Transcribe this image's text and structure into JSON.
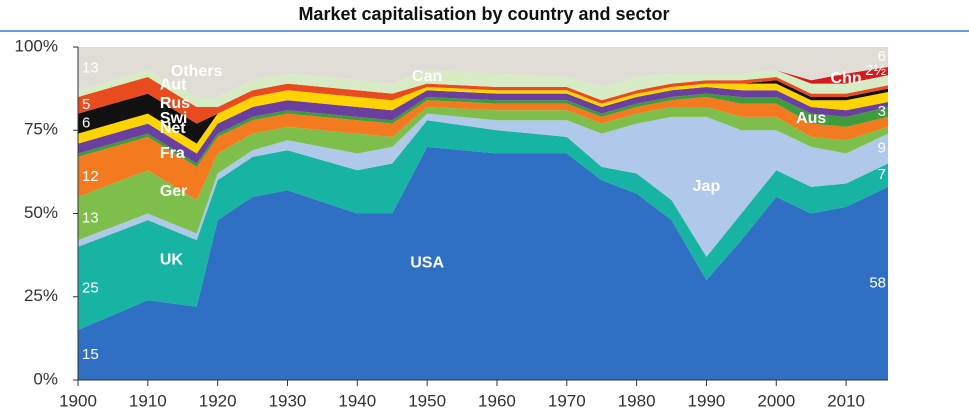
{
  "chart_data": {
    "type": "stacked_area",
    "title": "Market capitalisation by country and sector",
    "x": [
      1900,
      1910,
      1917,
      1920,
      1925,
      1930,
      1940,
      1945,
      1950,
      1960,
      1970,
      1975,
      1980,
      1985,
      1990,
      1995,
      2000,
      2005,
      2010,
      2016
    ],
    "xlim": [
      1900,
      2016
    ],
    "xticks": [
      1900,
      1910,
      1920,
      1930,
      1940,
      1950,
      1960,
      1970,
      1980,
      1990,
      2000,
      2010
    ],
    "ylim": [
      0,
      100
    ],
    "yticks": [
      {
        "value": 0,
        "label": "0%"
      },
      {
        "value": 25,
        "label": "25%"
      },
      {
        "value": 50,
        "label": "50%"
      },
      {
        "value": 75,
        "label": "75%"
      },
      {
        "value": 100,
        "label": "100%"
      }
    ],
    "series": [
      {
        "name": "USA",
        "color": "#2f6fc4",
        "values": [
          15,
          24,
          22,
          48,
          55,
          57,
          50,
          50,
          70,
          68,
          68,
          60,
          56,
          48,
          30,
          42,
          55,
          50,
          52,
          58
        ],
        "value_labels": [
          "15",
          null,
          null,
          null,
          null,
          null,
          null,
          null,
          null,
          null,
          null,
          null,
          null,
          null,
          null,
          null,
          null,
          null,
          null,
          "58"
        ]
      },
      {
        "name": "UK",
        "color": "#17b3a3",
        "values": [
          25,
          24,
          20,
          12,
          12,
          12,
          13,
          15,
          8,
          7,
          5,
          4,
          6,
          6,
          7,
          8,
          8,
          8,
          7,
          7
        ],
        "value_labels": [
          "25",
          null,
          null,
          null,
          null,
          null,
          null,
          null,
          null,
          null,
          null,
          null,
          null,
          null,
          null,
          null,
          null,
          null,
          null,
          "7"
        ]
      },
      {
        "name": "Jap",
        "color": "#b0c8ea",
        "values": [
          2,
          2,
          2,
          2,
          2,
          3,
          5,
          5,
          2,
          3,
          5,
          10,
          15,
          25,
          42,
          25,
          12,
          12,
          9,
          9
        ],
        "value_labels": [
          null,
          null,
          null,
          null,
          null,
          null,
          null,
          null,
          null,
          null,
          null,
          null,
          null,
          null,
          null,
          null,
          null,
          null,
          null,
          "9"
        ]
      },
      {
        "name": "Ger",
        "color": "#7dbf4a",
        "values": [
          13,
          13,
          10,
          6,
          5,
          4,
          6,
          3,
          2,
          3,
          3,
          3,
          3,
          3,
          3,
          4,
          4,
          3,
          4,
          2
        ],
        "value_labels": [
          "13",
          null,
          null,
          null,
          null,
          null,
          null,
          null,
          null,
          null,
          null,
          null,
          null,
          null,
          null,
          null,
          null,
          null,
          null,
          null
        ]
      },
      {
        "name": "Fra",
        "color": "#f47a20",
        "values": [
          12,
          10,
          10,
          5,
          4,
          4,
          4,
          4,
          2,
          2,
          2,
          2,
          2,
          2,
          3,
          4,
          4,
          4,
          4,
          3
        ],
        "value_labels": [
          "12",
          null,
          null,
          null,
          null,
          null,
          null,
          null,
          null,
          null,
          null,
          null,
          null,
          null,
          null,
          null,
          null,
          null,
          null,
          null
        ]
      },
      {
        "name": "Aus",
        "color": "#3f9c3a",
        "values": [
          1,
          1,
          1,
          1,
          1,
          1,
          1,
          1,
          1,
          1,
          1,
          1,
          1,
          1,
          1,
          2,
          2,
          3,
          3,
          3
        ],
        "value_labels": [
          null,
          null,
          null,
          null,
          null,
          null,
          null,
          null,
          null,
          null,
          null,
          null,
          null,
          null,
          null,
          null,
          null,
          null,
          null,
          "3"
        ]
      },
      {
        "name": "Net",
        "color": "#6b3fa0",
        "values": [
          3,
          3,
          3,
          3,
          3,
          3,
          3,
          3,
          2,
          2,
          2,
          2,
          2,
          2,
          2,
          2,
          2,
          2,
          2,
          1.5
        ],
        "value_labels": [
          null,
          null,
          null,
          null,
          null,
          null,
          null,
          null,
          null,
          null,
          null,
          null,
          null,
          null,
          null,
          null,
          null,
          null,
          null,
          null
        ]
      },
      {
        "name": "Swi",
        "color": "#ffd400",
        "values": [
          3,
          3,
          3,
          3,
          3,
          3,
          3,
          3,
          1,
          1,
          1,
          1,
          1,
          1,
          1,
          2,
          2,
          2,
          3,
          3
        ],
        "value_labels": [
          null,
          null,
          null,
          null,
          null,
          null,
          null,
          null,
          null,
          null,
          null,
          null,
          null,
          null,
          null,
          null,
          null,
          null,
          null,
          null
        ]
      },
      {
        "name": "Rus",
        "color": "#111111",
        "values": [
          6,
          6,
          6,
          0,
          0,
          0,
          0,
          0,
          0,
          0,
          0,
          0,
          0,
          0,
          0,
          0,
          1,
          1,
          1,
          1
        ],
        "value_labels": [
          "6",
          null,
          null,
          null,
          null,
          null,
          null,
          null,
          null,
          null,
          null,
          null,
          null,
          null,
          null,
          null,
          null,
          null,
          null,
          null
        ]
      },
      {
        "name": "Aut",
        "color": "#e84c1e",
        "values": [
          5,
          5,
          5,
          2,
          2,
          2,
          2,
          2,
          1,
          1,
          1,
          1,
          1,
          1,
          1,
          1,
          1,
          1,
          1,
          1
        ],
        "value_labels": [
          "5",
          null,
          null,
          null,
          null,
          null,
          null,
          null,
          null,
          null,
          null,
          null,
          null,
          null,
          null,
          null,
          null,
          null,
          null,
          null
        ]
      },
      {
        "name": "Can",
        "color": "#d7ecc4",
        "values": [
          2,
          2,
          3,
          3,
          3,
          3,
          3,
          3,
          4,
          4,
          3,
          4,
          4,
          3,
          2,
          2,
          2,
          3,
          3,
          3
        ],
        "value_labels": [
          null,
          null,
          null,
          null,
          null,
          null,
          null,
          null,
          null,
          null,
          null,
          null,
          null,
          null,
          null,
          null,
          null,
          null,
          null,
          null
        ]
      },
      {
        "name": "Chn",
        "color": "#d7191c",
        "values": [
          0,
          0,
          0,
          0,
          0,
          0,
          0,
          0,
          0,
          0,
          0,
          0,
          0,
          0,
          0,
          0,
          0,
          1,
          3,
          2.5
        ],
        "value_labels": [
          null,
          null,
          null,
          null,
          null,
          null,
          null,
          null,
          null,
          null,
          null,
          null,
          null,
          null,
          null,
          null,
          null,
          null,
          null,
          "2½"
        ]
      },
      {
        "name": "Others",
        "color": "#e0dcd6",
        "values": [
          13,
          7,
          15,
          15,
          10,
          8,
          10,
          11,
          7,
          8,
          9,
          12,
          9,
          8,
          8,
          8,
          7,
          10,
          8,
          6
        ],
        "value_labels": [
          "13",
          null,
          null,
          null,
          null,
          null,
          null,
          null,
          null,
          null,
          null,
          null,
          null,
          null,
          null,
          null,
          null,
          null,
          null,
          "6"
        ]
      }
    ]
  }
}
